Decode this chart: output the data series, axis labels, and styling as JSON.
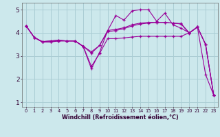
{
  "xlabel": "Windchill (Refroidissement éolien,°C)",
  "background_color": "#cce8ec",
  "grid_color": "#aacdd4",
  "line_color": "#990099",
  "x": [
    0,
    1,
    2,
    3,
    4,
    5,
    6,
    7,
    8,
    9,
    10,
    11,
    12,
    13,
    14,
    15,
    16,
    17,
    18,
    19,
    20,
    21,
    22,
    23
  ],
  "s1": [
    4.3,
    3.8,
    3.6,
    3.6,
    3.65,
    3.65,
    3.65,
    3.4,
    2.45,
    3.15,
    4.1,
    4.75,
    4.55,
    4.95,
    5.0,
    5.0,
    4.5,
    4.85,
    4.35,
    4.2,
    4.0,
    4.25,
    2.2,
    1.3
  ],
  "s2": [
    4.3,
    3.8,
    3.6,
    3.62,
    3.65,
    3.65,
    3.65,
    3.42,
    2.55,
    3.1,
    3.75,
    3.75,
    3.78,
    3.82,
    3.85,
    3.85,
    3.85,
    3.85,
    3.85,
    3.85,
    4.0,
    4.25,
    3.5,
    1.3
  ],
  "s3": [
    4.3,
    3.8,
    3.62,
    3.65,
    3.68,
    3.65,
    3.65,
    3.42,
    3.18,
    3.45,
    4.1,
    4.15,
    4.22,
    4.35,
    4.42,
    4.45,
    4.45,
    4.45,
    4.42,
    4.4,
    4.0,
    4.25,
    3.5,
    1.3
  ],
  "s4": [
    4.3,
    3.8,
    3.62,
    3.65,
    3.68,
    3.65,
    3.65,
    3.42,
    3.12,
    3.45,
    4.05,
    4.1,
    4.18,
    4.3,
    4.38,
    4.42,
    4.45,
    4.45,
    4.42,
    4.38,
    3.98,
    4.25,
    3.5,
    1.3
  ],
  "ylim": [
    0.8,
    5.3
  ],
  "yticks": [
    1,
    2,
    3,
    4,
    5
  ],
  "xlim": [
    -0.5,
    23.5
  ]
}
